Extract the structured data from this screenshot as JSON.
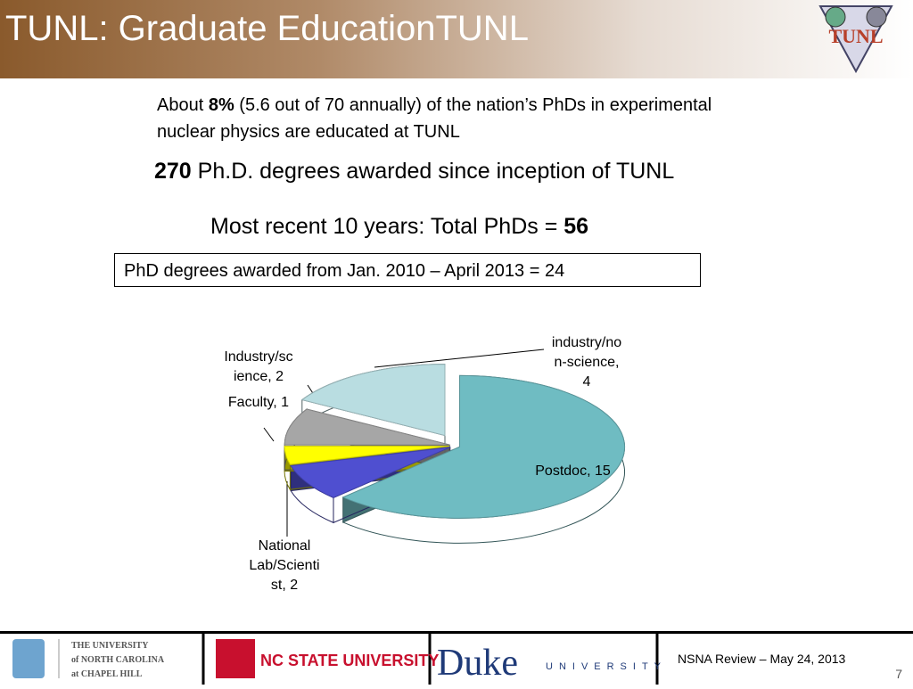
{
  "header": {
    "title": "TUNL: Graduate EducationTUNL",
    "logo": "TUNL"
  },
  "text": {
    "line1": [
      "About ",
      "8%",
      " (5.6 out of 70 annually) of the nation’s PhDs in experimental nuclear physics are  educated at TUNL"
    ],
    "line2": [
      "270",
      " Ph.D. degrees awarded since inception of TUNL"
    ],
    "line3": [
      "Most recent 10 years: Total PhDs = ",
      "56"
    ],
    "box": "PhD degrees awarded from Jan. 2010 – April 2013 = 24"
  },
  "chart_data": {
    "type": "pie3d",
    "values": [
      15,
      2,
      1,
      2,
      4
    ],
    "value_labels": [
      "Postdoc, 15",
      "National Lab/Scientist, 2",
      "Faculty, 1",
      "Industry/science, 2",
      "industry/non-science, 4"
    ],
    "colors": [
      "#6fbcc2",
      "#4f4fd0",
      "#ffff00",
      "#a6a6a6",
      "#b9dde1"
    ]
  },
  "footer": {
    "unc": [
      "THE UNIVERSITY",
      "of NORTH CAROLINA",
      "at CHAPEL HILL"
    ],
    "ncsu": "NC STATE UNIVERSITY",
    "duke": "Duke",
    "duke_sub": "UNIVERSITY",
    "event": "NSNA Review – May 24, 2013",
    "page": "7"
  }
}
